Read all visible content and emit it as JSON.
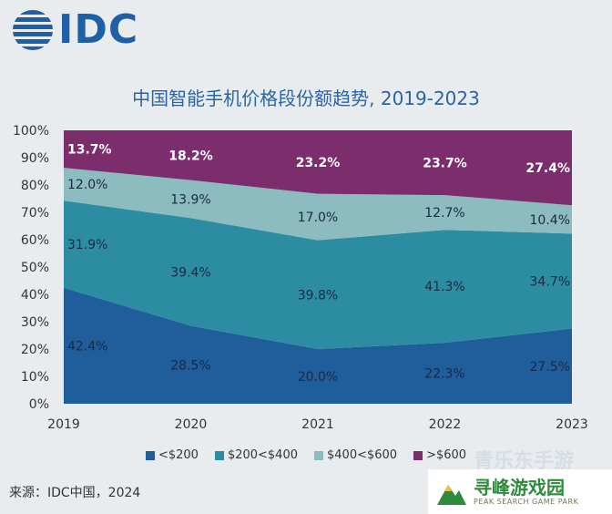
{
  "logo": {
    "text": "IDC"
  },
  "title": "中国智能手机价格段份额趋势, 2019-2023",
  "source": "来源：IDC中国，2024",
  "watermarks": {
    "top": "青乐东手游",
    "main": "寻峰游戏园",
    "sub": "PEAK SEARCH GAME PARK"
  },
  "chart_data": {
    "type": "area",
    "stacked": true,
    "percent": true,
    "x": [
      "2019",
      "2020",
      "2021",
      "2022",
      "2023"
    ],
    "ylim": [
      0,
      100
    ],
    "yticks": [
      "0%",
      "10%",
      "20%",
      "30%",
      "40%",
      "50%",
      "60%",
      "70%",
      "80%",
      "90%",
      "100%"
    ],
    "series": [
      {
        "name": "<$200",
        "values": [
          42.4,
          28.5,
          20.0,
          22.3,
          27.5
        ],
        "labels": [
          "42.4%",
          "28.5%",
          "20.0%",
          "22.3%",
          "27.5%"
        ],
        "color": "#1f5d9b",
        "label_color": "#1a2a44"
      },
      {
        "name": "$200<$400",
        "values": [
          31.9,
          39.4,
          39.8,
          41.3,
          34.7
        ],
        "labels": [
          "31.9%",
          "39.4%",
          "39.8%",
          "41.3%",
          "34.7%"
        ],
        "color": "#2c8ca1",
        "label_color": "#1a2a44"
      },
      {
        "name": "$400<$600",
        "values": [
          12.0,
          13.9,
          17.0,
          12.7,
          10.4
        ],
        "labels": [
          "12.0%",
          "13.9%",
          "17.0%",
          "12.7%",
          "10.4%"
        ],
        "color": "#8cbcc0",
        "label_color": "#1a2a44"
      },
      {
        "name": ">$600",
        "values": [
          13.7,
          18.2,
          23.2,
          23.7,
          27.4
        ],
        "labels": [
          "13.7%",
          "18.2%",
          "23.2%",
          "23.7%",
          "27.4%"
        ],
        "color": "#7b2d6c",
        "label_color": "#ffffff"
      }
    ],
    "legend_position": "bottom"
  }
}
